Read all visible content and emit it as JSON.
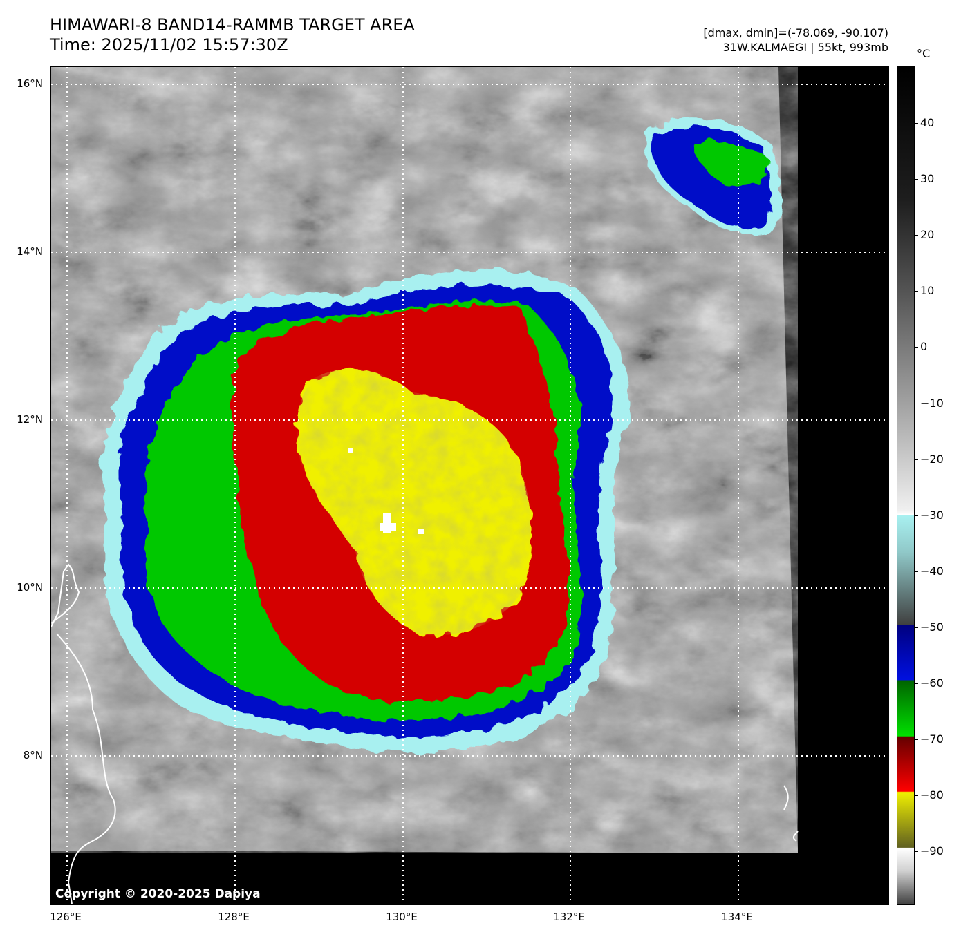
{
  "header": {
    "title_line1": "HIMAWARI-8 BAND14-RAMMB TARGET AREA",
    "title_line2": "Time: 2025/11/02 15:57:30Z",
    "info_line1": "[dmax, dmin]=(-78.069, -90.107)",
    "info_line2": "31W.KALMAEGI | 55kt, 993mb"
  },
  "map": {
    "copyright": "Copyright © 2020-2025 Dapiya",
    "lat_labels": [
      "16°N",
      "14°N",
      "12°N",
      "10°N",
      "8°N"
    ],
    "lon_labels": [
      "126°E",
      "128°E",
      "130°E",
      "132°E",
      "134°E"
    ],
    "gridlines": "dotted white",
    "storm": "31W.KALMAEGI"
  },
  "colorbar": {
    "unit": "°C",
    "ticks": [
      "40",
      "30",
      "20",
      "10",
      "0",
      "−10",
      "−20",
      "−30",
      "−40",
      "−50",
      "−60",
      "−70",
      "−80",
      "−90"
    ],
    "colors": {
      "warm": "#000000",
      "cold_gray": "#ffffff",
      "cyan": "#a0f0f0",
      "blue": "#0010c8",
      "green": "#00c800",
      "red": "#d40000",
      "yellow": "#f0f000"
    }
  }
}
